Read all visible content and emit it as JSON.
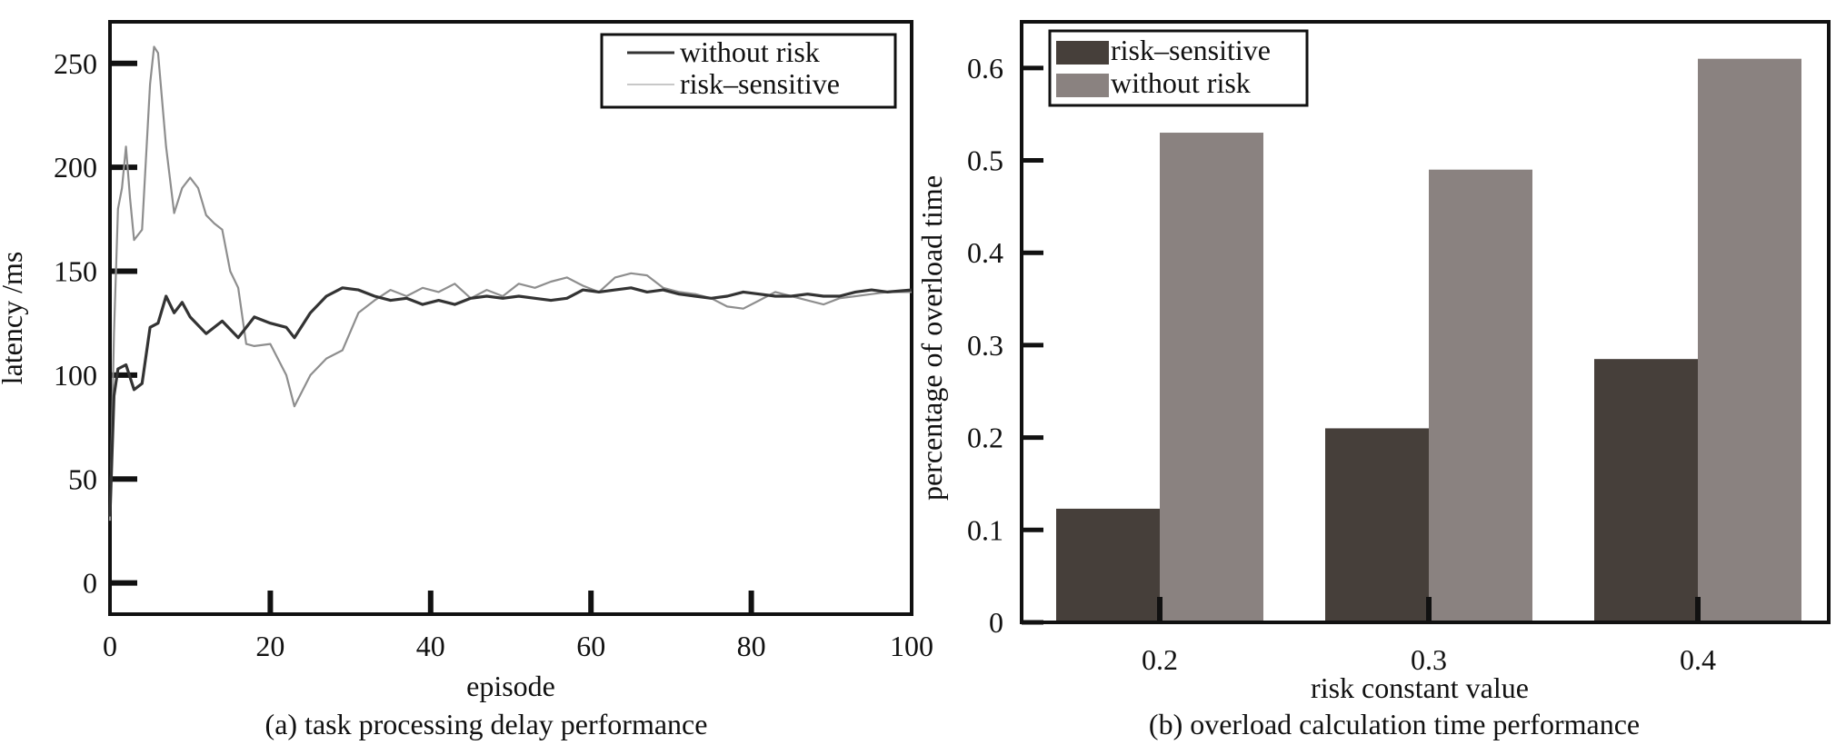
{
  "chart_data": [
    {
      "type": "line",
      "caption": "(a) task processing delay performance",
      "xlabel": "episode",
      "ylabel": "latency /ms",
      "xlim": [
        0,
        100
      ],
      "ylim": [
        -15,
        270
      ],
      "xticks": [
        "0",
        "20",
        "40",
        "60",
        "80",
        "100"
      ],
      "yticks": [
        "0",
        "50",
        "100",
        "150",
        "200",
        "250"
      ],
      "legend_position": "top-right",
      "series": [
        {
          "name": "without risk",
          "color": "#333333",
          "x": [
            0,
            0.5,
            1,
            2,
            3,
            4,
            5,
            6,
            7,
            8,
            9,
            10,
            12,
            14,
            16,
            18,
            20,
            22,
            23,
            25,
            27,
            29,
            31,
            33,
            35,
            37,
            39,
            41,
            43,
            45,
            47,
            49,
            51,
            53,
            55,
            57,
            59,
            61,
            63,
            65,
            67,
            69,
            71,
            73,
            75,
            77,
            79,
            81,
            83,
            85,
            87,
            89,
            91,
            93,
            95,
            97,
            100
          ],
          "y": [
            32,
            90,
            103,
            105,
            93,
            96,
            123,
            125,
            138,
            130,
            135,
            128,
            120,
            126,
            118,
            128,
            125,
            123,
            118,
            130,
            138,
            142,
            141,
            138,
            136,
            137,
            134,
            136,
            134,
            137,
            138,
            137,
            138,
            137,
            136,
            137,
            141,
            140,
            141,
            142,
            140,
            141,
            139,
            138,
            137,
            138,
            140,
            139,
            138,
            138,
            139,
            138,
            138,
            140,
            141,
            140,
            141
          ]
        },
        {
          "name": "risk–sensitive",
          "color": "#8e8e8e",
          "x": [
            0,
            0.5,
            1,
            1.5,
            2,
            2.5,
            3,
            4,
            5,
            5.5,
            6,
            7,
            8,
            9,
            10,
            11,
            12,
            13,
            14,
            15,
            16,
            17,
            18,
            20,
            22,
            23,
            25,
            27,
            29,
            31,
            33,
            35,
            37,
            39,
            41,
            43,
            45,
            47,
            49,
            51,
            53,
            55,
            57,
            59,
            61,
            63,
            65,
            67,
            69,
            71,
            73,
            75,
            77,
            79,
            81,
            83,
            85,
            87,
            89,
            91,
            93,
            95,
            97,
            100
          ],
          "y": [
            30,
            120,
            180,
            190,
            210,
            185,
            165,
            170,
            240,
            258,
            255,
            210,
            178,
            190,
            195,
            190,
            177,
            173,
            170,
            150,
            142,
            115,
            114,
            115,
            100,
            85,
            100,
            108,
            112,
            130,
            136,
            141,
            138,
            142,
            140,
            144,
            137,
            141,
            138,
            144,
            142,
            145,
            147,
            143,
            140,
            147,
            149,
            148,
            142,
            140,
            139,
            137,
            133,
            132,
            136,
            140,
            138,
            136,
            134,
            137,
            138,
            139,
            140,
            140
          ]
        }
      ]
    },
    {
      "type": "bar",
      "caption": "(b) overload calculation time performance",
      "xlabel": "risk constant value",
      "ylabel": "percentage of overload time",
      "categories": [
        "0.2",
        "0.3",
        "0.4"
      ],
      "ylim": [
        0,
        0.65
      ],
      "yticks": [
        "0",
        "0.1",
        "0.2",
        "0.3",
        "0.4",
        "0.5",
        "0.6"
      ],
      "legend_position": "top-left",
      "series": [
        {
          "name": "risk–sensitive",
          "color": "#463f3a",
          "values": [
            0.123,
            0.21,
            0.285
          ]
        },
        {
          "name": "without risk",
          "color": "#8a8280",
          "values": [
            0.53,
            0.49,
            0.61
          ]
        }
      ]
    }
  ]
}
